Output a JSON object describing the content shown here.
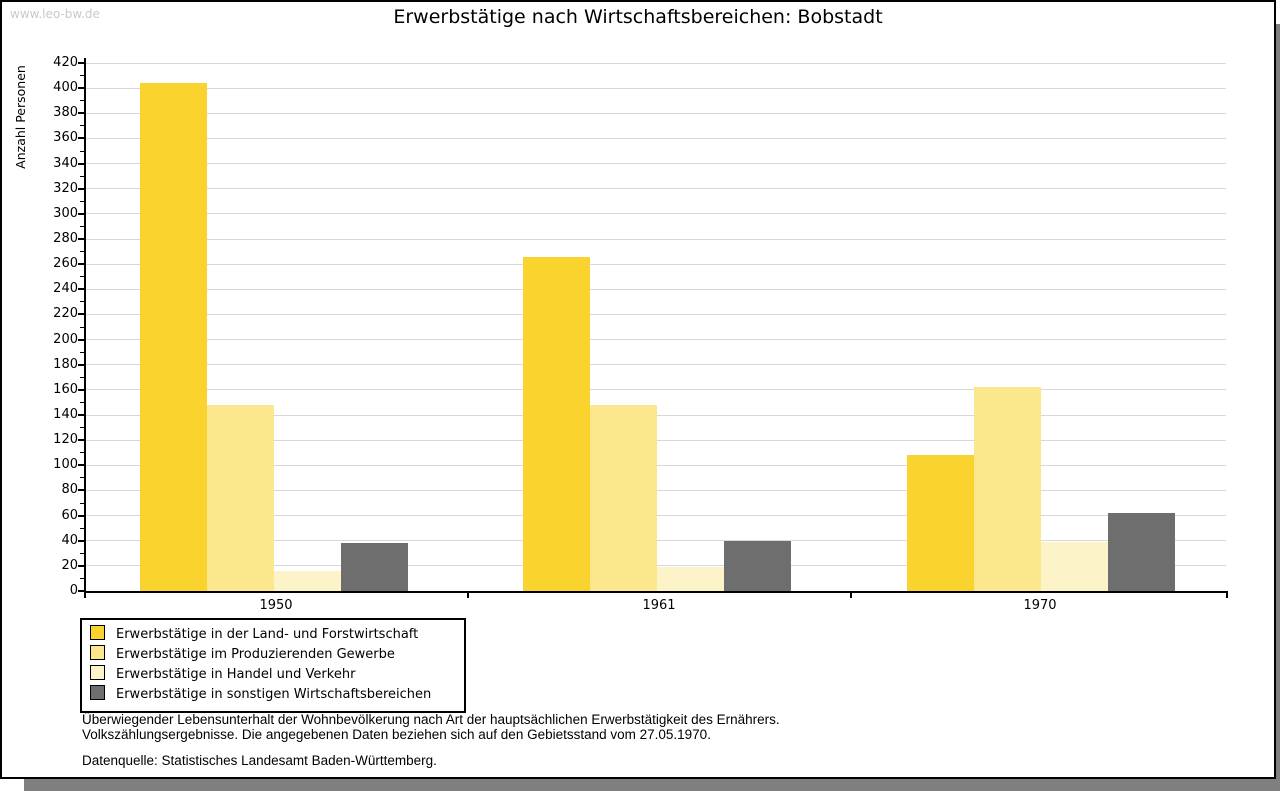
{
  "watermark": "www.leo-bw.de",
  "chart_data": {
    "type": "bar",
    "title": "Erwerbstätige nach Wirtschaftsbereichen: Bobstadt",
    "ylabel": "Anzahl Personen",
    "xlabel": "",
    "categories": [
      "1950",
      "1961",
      "1970"
    ],
    "series": [
      {
        "name": "Erwerbstätige in der Land- und Forstwirtschaft",
        "color": "#FBD32E",
        "values": [
          404,
          266,
          108
        ]
      },
      {
        "name": "Erwerbstätige im Produzierenden Gewerbe",
        "color": "#FBE88C",
        "values": [
          148,
          148,
          162
        ]
      },
      {
        "name": "Erwerbstätige in Handel und Verkehr",
        "color": "#FCF4C8",
        "values": [
          16,
          19,
          39
        ]
      },
      {
        "name": "Erwerbstätige in sonstigen Wirtschaftsbereichen",
        "color": "#6E6E6E",
        "values": [
          38,
          40,
          62
        ]
      }
    ],
    "ylim": [
      0,
      423
    ],
    "yticks": [
      0,
      20,
      40,
      60,
      80,
      100,
      120,
      140,
      160,
      180,
      200,
      220,
      240,
      260,
      280,
      300,
      320,
      340,
      360,
      380,
      400,
      420
    ],
    "grid": true,
    "gridline_color": "#d8d8d8",
    "legend_position": "bottom-left"
  },
  "footer": {
    "line1": "Überwiegender Lebensunterhalt der Wohnbevölkerung nach Art der hauptsächlichen Erwerbstätigkeit des Ernährers.",
    "line2": "Volkszählungsergebnisse. Die angegebenen Daten beziehen sich auf den Gebietsstand vom 27.05.1970.",
    "source": "Datenquelle: Statistisches Landesamt Baden-Württemberg."
  }
}
